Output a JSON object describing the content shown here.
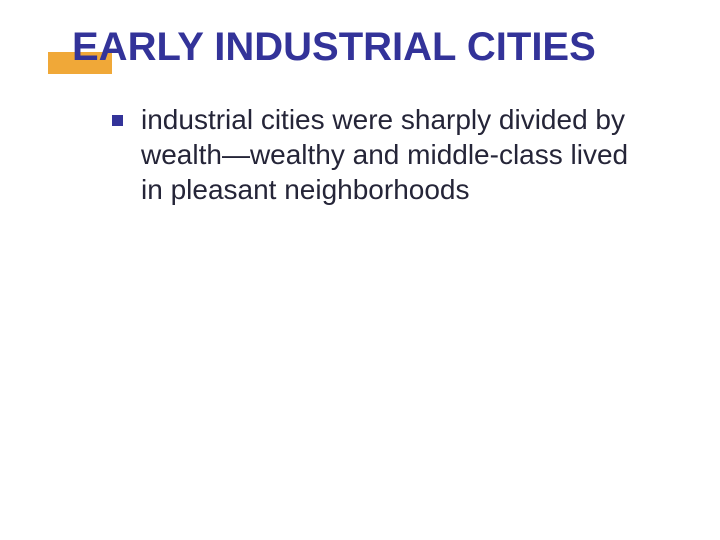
{
  "slide": {
    "title": "EARLY INDUSTRIAL CITIES",
    "bullets": [
      {
        "text": "industrial cities were sharply divided by wealth—wealthy and middle-class lived in pleasant neighborhoods"
      }
    ]
  },
  "styling": {
    "background_color": "#ffffff",
    "title_color": "#333399",
    "title_fontsize": 40,
    "title_fontweight": "bold",
    "accent_bar_color": "#f0a838",
    "accent_bar_width": 64,
    "accent_bar_height": 22,
    "bullet_color": "#333399",
    "bullet_size": 11,
    "body_text_color": "#252538",
    "body_fontsize": 28,
    "font_family": "Verdana"
  }
}
